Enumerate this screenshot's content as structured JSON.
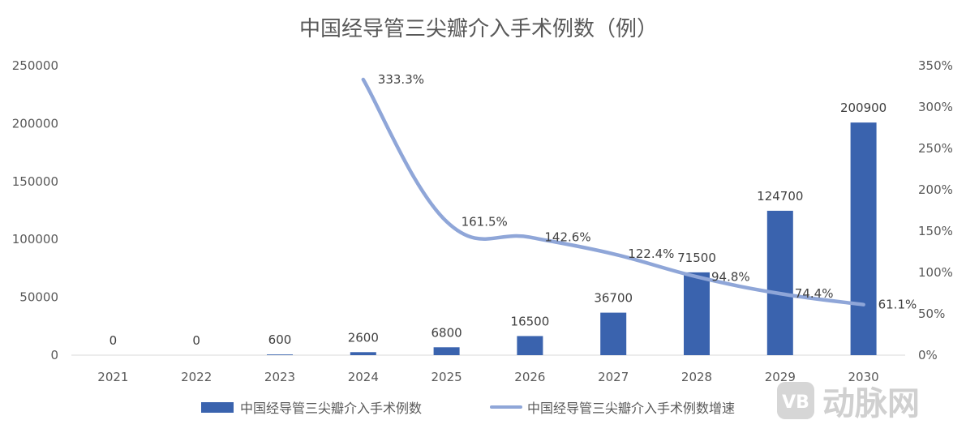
{
  "chart_data": {
    "type": "bar",
    "title": "中国经导管三尖瓣介入手术例数（例）",
    "categories": [
      "2021",
      "2022",
      "2023",
      "2024",
      "2025",
      "2026",
      "2027",
      "2028",
      "2029",
      "2030"
    ],
    "series": [
      {
        "name": "中国经导管三尖瓣介入手术例数",
        "type": "bar",
        "axis": "left",
        "color": "#3A63AE",
        "values": [
          0,
          0,
          600,
          2600,
          6800,
          16500,
          36700,
          71500,
          124700,
          200900
        ],
        "labels": [
          "0",
          "0",
          "600",
          "2600",
          "6800",
          "16500",
          "36700",
          "71500",
          "124700",
          "200900"
        ]
      },
      {
        "name": "中国经导管三尖瓣介入手术例数增速",
        "type": "line",
        "axis": "right",
        "color": "#8FA6D8",
        "values": [
          null,
          null,
          null,
          333.3,
          161.5,
          142.6,
          122.4,
          94.8,
          74.4,
          61.1
        ],
        "labels": [
          "",
          "",
          "",
          "333.3%",
          "161.5%",
          "142.6%",
          "122.4%",
          "94.8%",
          "74.4%",
          "61.1%"
        ]
      }
    ],
    "y_left": {
      "lim": [
        0,
        250000
      ],
      "ticks": [
        "0",
        "50000",
        "100000",
        "150000",
        "200000",
        "250000"
      ]
    },
    "y_right": {
      "lim": [
        0,
        350
      ],
      "ticks": [
        "0%",
        "50%",
        "100%",
        "150%",
        "200%",
        "250%",
        "300%",
        "350%"
      ]
    },
    "grid": false,
    "legend_position": "bottom"
  },
  "watermark": {
    "text": "动脉网",
    "logo_text": "VB"
  }
}
